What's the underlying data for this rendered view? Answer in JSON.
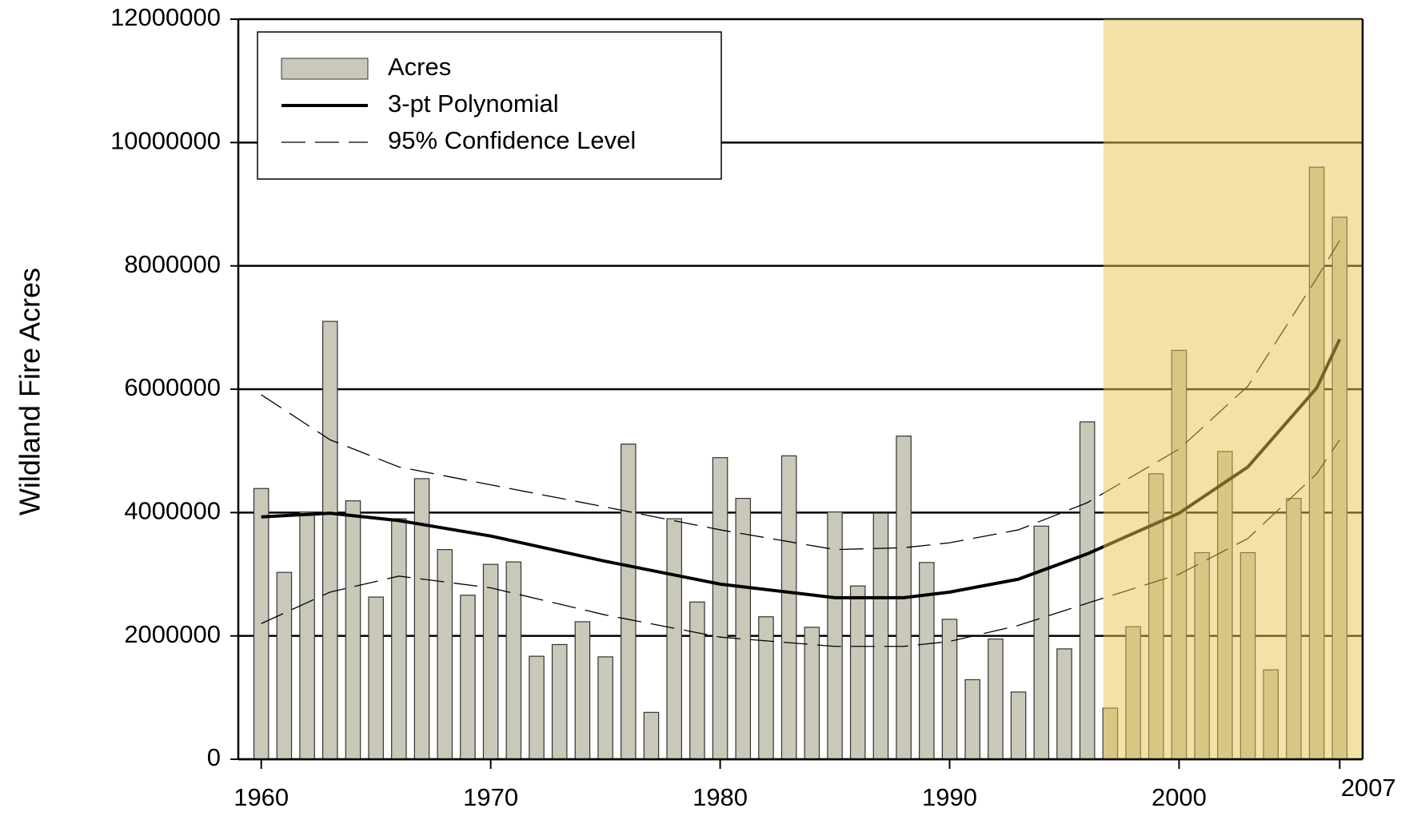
{
  "chart_data": {
    "type": "bar",
    "y_label": "Wildland Fire Acres",
    "x": [
      1960,
      1961,
      1962,
      1963,
      1964,
      1965,
      1966,
      1967,
      1968,
      1969,
      1970,
      1971,
      1972,
      1973,
      1974,
      1975,
      1976,
      1977,
      1978,
      1979,
      1980,
      1981,
      1982,
      1983,
      1984,
      1985,
      1986,
      1987,
      1988,
      1989,
      1990,
      1991,
      1992,
      1993,
      1994,
      1995,
      1996,
      1997,
      1998,
      1999,
      2000,
      2001,
      2002,
      2003,
      2004,
      2005,
      2006,
      2007
    ],
    "xlim": [
      1959,
      2008
    ],
    "xticks": [
      1960,
      1970,
      1980,
      1990,
      2000,
      2007
    ],
    "ylim": [
      0,
      12000000
    ],
    "yticks": [
      0,
      2000000,
      4000000,
      6000000,
      8000000,
      10000000,
      12000000
    ],
    "grid": true,
    "legend": "upper left",
    "shaded_region": {
      "xlim": [
        1996.7,
        2008
      ],
      "color": "rgba(232,196,80,0.5)"
    },
    "series": [
      {
        "name": "Acres",
        "type": "bar",
        "color": "#c9c8b9",
        "values": [
          4390000,
          3030000,
          4010000,
          7100000,
          4190000,
          2630000,
          3900000,
          4550000,
          3400000,
          2660000,
          3160000,
          3200000,
          1670000,
          1860000,
          2230000,
          1660000,
          5110000,
          760000,
          3900000,
          2550000,
          4890000,
          4230000,
          2310000,
          4920000,
          2140000,
          4010000,
          2810000,
          3990000,
          5240000,
          3190000,
          2270000,
          1290000,
          1950000,
          1090000,
          3780000,
          1790000,
          5470000,
          830000,
          2150000,
          4630000,
          6630000,
          3350000,
          4990000,
          3350000,
          1450000,
          4230000,
          9600000,
          8790000
        ]
      },
      {
        "name": "3-pt Polynomial",
        "type": "line",
        "color": "#000000",
        "x": [
          1960,
          1963,
          1966,
          1970,
          1975,
          1980,
          1985,
          1988,
          1990,
          1993,
          1996,
          2000,
          2003,
          2006,
          2007
        ],
        "values": [
          3930000,
          3990000,
          3870000,
          3620000,
          3210000,
          2840000,
          2620000,
          2620000,
          2710000,
          2920000,
          3330000,
          3990000,
          4740000,
          6020000,
          6810000
        ]
      },
      {
        "name": "95% Confidence Level",
        "type": "band-lines",
        "color": "#000000",
        "x": [
          1960,
          1963,
          1966,
          1970,
          1975,
          1980,
          1985,
          1988,
          1990,
          1993,
          1996,
          2000,
          2003,
          2006,
          2007
        ],
        "upper": [
          5910000,
          5180000,
          4740000,
          4450000,
          4090000,
          3720000,
          3400000,
          3430000,
          3510000,
          3720000,
          4160000,
          5030000,
          6050000,
          7800000,
          8410000
        ],
        "lower": [
          2200000,
          2710000,
          2970000,
          2780000,
          2340000,
          1980000,
          1830000,
          1830000,
          1910000,
          2170000,
          2530000,
          3000000,
          3580000,
          4630000,
          5180000
        ]
      }
    ]
  }
}
